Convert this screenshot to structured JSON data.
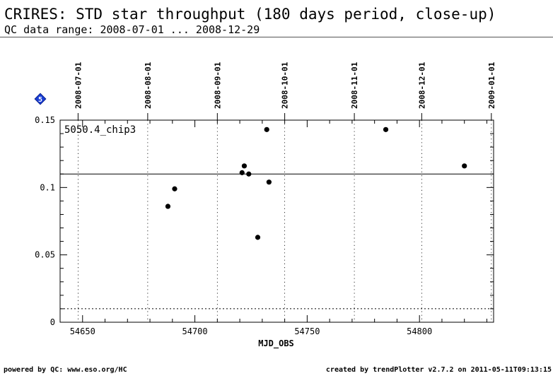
{
  "header": {
    "title": "CRIRES: STD star throughput (180 days period, close-up)",
    "subtitle": "QC data range: 2008-07-01 ... 2008-12-29"
  },
  "footer": {
    "left": "powered by QC: www.eso.org/HC",
    "right": "created by trendPlotter v2.7.2 on 2011-05-11T09:13:15"
  },
  "chart_data": {
    "type": "scatter",
    "panel_badge": "5",
    "panel_label": "5050.4_chip3",
    "xlabel": "MJD_OBS",
    "ylabel": "",
    "xlim": [
      54640,
      54833
    ],
    "ylim": [
      0,
      0.15
    ],
    "x_ticks": [
      54650,
      54700,
      54750,
      54800
    ],
    "y_ticks": [
      0,
      0.05,
      0.1,
      0.15
    ],
    "y_tick_labels": [
      "0",
      "0.05",
      "0.1",
      "0.15"
    ],
    "top_date_ticks": [
      {
        "mjd": 54648,
        "label": "2008-07-01"
      },
      {
        "mjd": 54679,
        "label": "2008-08-01"
      },
      {
        "mjd": 54710,
        "label": "2008-09-01"
      },
      {
        "mjd": 54740,
        "label": "2008-10-01"
      },
      {
        "mjd": 54771,
        "label": "2008-11-01"
      },
      {
        "mjd": 54801,
        "label": "2008-12-01"
      },
      {
        "mjd": 54832,
        "label": "2009-01-01"
      }
    ],
    "reference_lines": [
      {
        "y": 0.11,
        "style": "solid"
      },
      {
        "y": 0.01,
        "style": "dotted"
      }
    ],
    "points": [
      {
        "x": 54688,
        "y": 0.086
      },
      {
        "x": 54691,
        "y": 0.099
      },
      {
        "x": 54721,
        "y": 0.111
      },
      {
        "x": 54722,
        "y": 0.116
      },
      {
        "x": 54724,
        "y": 0.11
      },
      {
        "x": 54728,
        "y": 0.063
      },
      {
        "x": 54732,
        "y": 0.143
      },
      {
        "x": 54733,
        "y": 0.104
      },
      {
        "x": 54785,
        "y": 0.143
      },
      {
        "x": 54820,
        "y": 0.116
      }
    ],
    "grid": "vertical dotted lines at month boundaries",
    "colors": {
      "points": "#000000",
      "badge": "#1a3fd6"
    }
  }
}
